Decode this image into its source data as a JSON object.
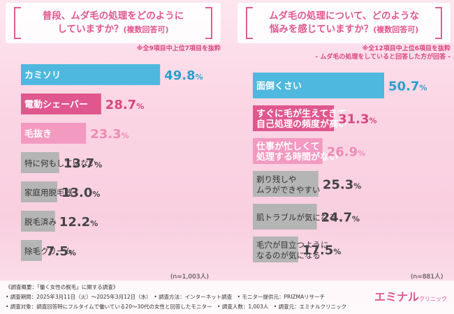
{
  "left": {
    "question_line1": "普段、ムダ毛の処理をどのように",
    "question_line2": "していますか？",
    "question_sub": "(複数回答可)",
    "note": "※全9項目中上位7項目を抜粋",
    "n_label": "(n=1,003人)"
  },
  "right": {
    "question_line1": "ムダ毛の処理について、どのような",
    "question_line2": "悩みを感じていますか？",
    "question_sub": "(複数回答可)",
    "note": "※全12項目中上位6項目を抜粋",
    "note2": "- ムダ毛の処理をしていると回答した方が回答 -",
    "n_label": "(n=881人)"
  },
  "chart_data": [
    {
      "type": "bar",
      "orientation": "horizontal",
      "categories": [
        "カミソリ",
        "電動シェーバー",
        "毛抜き",
        "特に何もしていない",
        "家庭用脱毛器",
        "脱毛済み",
        "除毛クリーム"
      ],
      "values": [
        49.8,
        28.7,
        23.3,
        13.7,
        13.0,
        12.2,
        7.5
      ],
      "unit": "%",
      "colors": [
        "#4fb8de",
        "#e0578e",
        "#f39ac1",
        "#b5b5b5",
        "#b5b5b5",
        "#b5b5b5",
        "#b5b5b5"
      ],
      "value_colors": [
        "#2b9fcf",
        "#d8467f",
        "#ee8ab5",
        "#444444",
        "#444444",
        "#444444",
        "#444444"
      ],
      "label_colors": [
        "#ffffff",
        "#ffffff",
        "#ffffff",
        "#333333",
        "#333333",
        "#333333",
        "#333333"
      ],
      "xlim": [
        0,
        50
      ]
    },
    {
      "type": "bar",
      "orientation": "horizontal",
      "categories": [
        [
          "面倒くさい"
        ],
        [
          "すぐに毛が生えてきて",
          "自己処理の頻度が高い"
        ],
        [
          "仕事が忙しくて",
          "処理する時間がない"
        ],
        [
          "剃り残しや",
          "ムラができやすい"
        ],
        [
          "肌トラブルが気になる"
        ],
        [
          "毛穴が目立つように",
          "なるのが気になる"
        ]
      ],
      "values": [
        50.7,
        31.3,
        26.9,
        25.3,
        24.7,
        17.5
      ],
      "unit": "%",
      "colors": [
        "#4fb8de",
        "#e0578e",
        "#f39ac1",
        "#b5b5b5",
        "#b5b5b5",
        "#b5b5b5"
      ],
      "value_colors": [
        "#2b9fcf",
        "#d8467f",
        "#ee8ab5",
        "#444444",
        "#444444",
        "#444444"
      ],
      "label_colors": [
        "#ffffff",
        "#ffffff",
        "#ffffff",
        "#333333",
        "#333333",
        "#333333"
      ],
      "xlim": [
        0,
        50.7
      ]
    }
  ],
  "footer": {
    "line1": "《調査概要：「働く女性の脱毛」に関する調査》",
    "line2": "• 調査期間：2025年3月11日（火）〜2025年3月12日（水）　• 調査方法：インターネット調査　• モニター提供元：PRIZMAリサーチ",
    "line3": "• 調査対象：調査回答時にフルタイムで働いている20〜30代の女性と回答したモニター　• 調査人数：1,003人　• 調査元：エミナルクリニック"
  },
  "logo": {
    "main": "エミナル",
    "small": "クリニック"
  }
}
